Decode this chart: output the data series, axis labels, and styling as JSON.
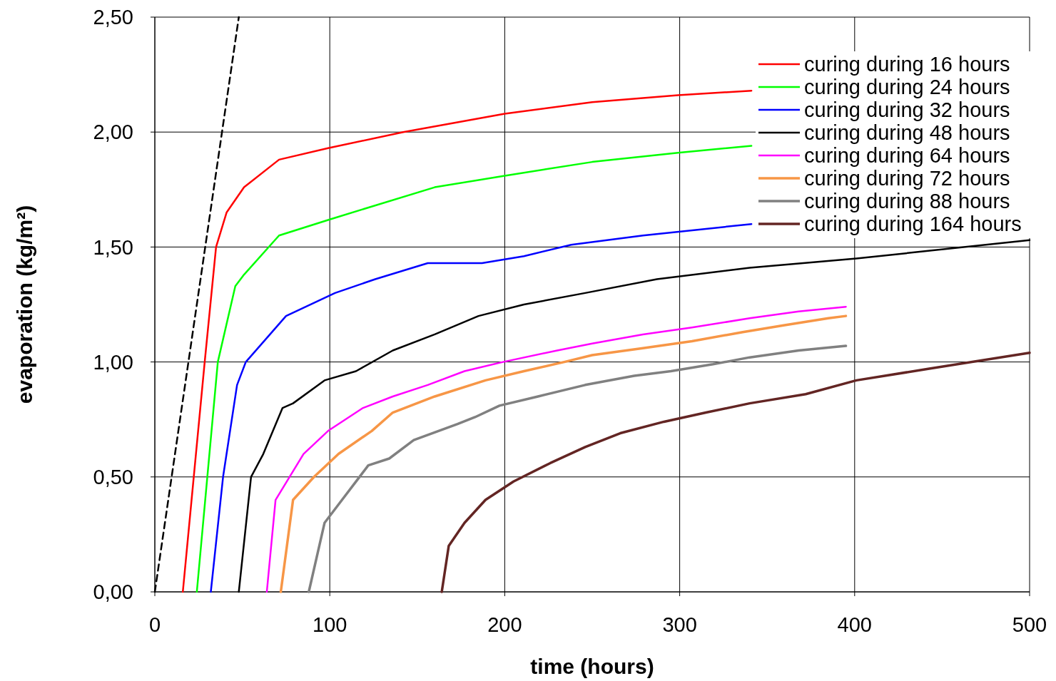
{
  "chart_data": {
    "type": "line",
    "xlabel": "time (hours)",
    "ylabel": "evaporation (kg/m²)",
    "xlim": [
      0,
      500
    ],
    "ylim": [
      0,
      2.5
    ],
    "xticks": [
      0,
      100,
      200,
      300,
      400,
      500
    ],
    "yticks": [
      {
        "value": 0,
        "label": "0,00"
      },
      {
        "value": 0.5,
        "label": "0,50"
      },
      {
        "value": 1,
        "label": "1,00"
      },
      {
        "value": 1.5,
        "label": "1,50"
      },
      {
        "value": 2,
        "label": "2,00"
      },
      {
        "value": 2.5,
        "label": "2,50"
      }
    ],
    "grid": true,
    "legend": "top right",
    "line_style": "solid",
    "series": [
      {
        "color": "#000000",
        "line_style": "dashed",
        "x": [
          0,
          48
        ],
        "values": [
          0,
          2.5
        ]
      },
      {
        "name": "curing during 16 hours",
        "color": "#ff0000",
        "x": [
          16,
          28.5,
          35,
          41,
          51,
          71,
          99,
          142,
          200,
          250,
          299,
          341
        ],
        "values": [
          0,
          1.0,
          1.5,
          1.65,
          1.76,
          1.88,
          1.93,
          2.0,
          2.08,
          2.13,
          2.16,
          2.18
        ]
      },
      {
        "name": "curing during 24 hours",
        "color": "#00ff00",
        "x": [
          24,
          30,
          36,
          46,
          51,
          71,
          100,
          160,
          200,
          250,
          299,
          341
        ],
        "values": [
          0,
          0.5,
          1.0,
          1.33,
          1.38,
          1.55,
          1.62,
          1.76,
          1.81,
          1.87,
          1.91,
          1.94
        ]
      },
      {
        "name": "curing during 32 hours",
        "color": "#0000ff",
        "x": [
          32,
          39,
          47,
          52,
          75,
          103,
          126,
          156,
          187,
          211,
          238,
          279,
          341
        ],
        "values": [
          0,
          0.5,
          0.9,
          1.0,
          1.2,
          1.3,
          1.36,
          1.43,
          1.43,
          1.46,
          1.51,
          1.55,
          1.6
        ]
      },
      {
        "name": "curing during 48 hours",
        "color": "#000000",
        "x": [
          48,
          55,
          62,
          73,
          79,
          97,
          115,
          136,
          160,
          185,
          211,
          246,
          287,
          340,
          401,
          500
        ],
        "values": [
          0,
          0.5,
          0.6,
          0.8,
          0.82,
          0.92,
          0.96,
          1.05,
          1.12,
          1.2,
          1.25,
          1.3,
          1.36,
          1.41,
          1.45,
          1.53
        ]
      },
      {
        "name": "curing during 64 hours",
        "color": "#ff00ff",
        "x": [
          64,
          69,
          85,
          99,
          119,
          136,
          156,
          177,
          199,
          230,
          250,
          279,
          307,
          340,
          368,
          395
        ],
        "values": [
          0,
          0.4,
          0.6,
          0.7,
          0.8,
          0.85,
          0.9,
          0.96,
          1.0,
          1.05,
          1.08,
          1.12,
          1.15,
          1.19,
          1.22,
          1.24
        ]
      },
      {
        "name": "curing during 72 hours",
        "color": "#f79646",
        "x": [
          72,
          79,
          91,
          105,
          124,
          136,
          160,
          189,
          211,
          234,
          250,
          279,
          307,
          336,
          360,
          385,
          395
        ],
        "values": [
          0,
          0.4,
          0.5,
          0.6,
          0.7,
          0.78,
          0.85,
          0.92,
          0.96,
          1.0,
          1.03,
          1.06,
          1.09,
          1.13,
          1.16,
          1.19,
          1.2
        ]
      },
      {
        "name": "curing during 88 hours",
        "color": "#808080",
        "x": [
          88,
          97,
          107,
          122,
          134,
          148,
          173,
          183,
          197,
          219,
          246,
          274,
          295,
          319,
          340,
          368,
          395
        ],
        "values": [
          0,
          0.3,
          0.4,
          0.55,
          0.58,
          0.66,
          0.73,
          0.76,
          0.81,
          0.85,
          0.9,
          0.94,
          0.96,
          0.99,
          1.02,
          1.05,
          1.07
        ]
      },
      {
        "name": "curing during 164 hours",
        "color": "#632523",
        "x": [
          164,
          168,
          177,
          189,
          205,
          226,
          246,
          266,
          291,
          315,
          340,
          372,
          401,
          442,
          500
        ],
        "values": [
          0,
          0.2,
          0.3,
          0.4,
          0.48,
          0.56,
          0.63,
          0.69,
          0.74,
          0.78,
          0.82,
          0.86,
          0.92,
          0.97,
          1.04
        ]
      }
    ]
  }
}
